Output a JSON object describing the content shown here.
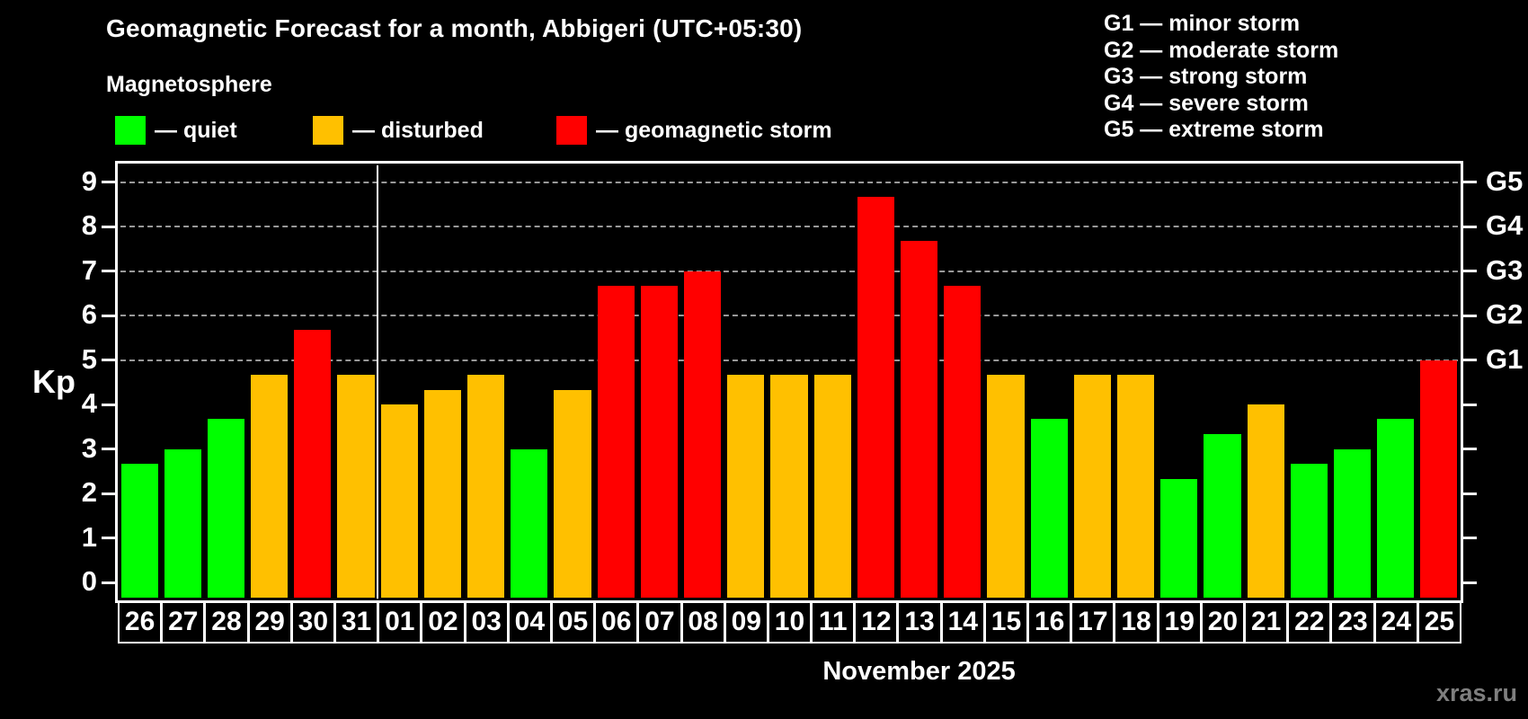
{
  "header": {
    "title": "Geomagnetic Forecast for a month, Abbigeri (UTC+05:30)",
    "subtitle": "Magnetosphere"
  },
  "legend": {
    "items": [
      {
        "id": "quiet",
        "label": "— quiet",
        "color": "#00ff00"
      },
      {
        "id": "disturbed",
        "label": "— disturbed",
        "color": "#ffc000"
      },
      {
        "id": "storm",
        "label": "— geomagnetic storm",
        "color": "#ff0000"
      }
    ]
  },
  "storm_scale": {
    "items": [
      "G1 — minor storm",
      "G2 — moderate storm",
      "G3 — strong storm",
      "G4 — severe storm",
      "G5 — extreme storm"
    ]
  },
  "chart_data": {
    "type": "bar",
    "title": "Geomagnetic Forecast for a month, Abbigeri (UTC+05:30)",
    "ylabel": "Kp",
    "xlabel": "November 2025",
    "ylim": [
      0,
      9
    ],
    "yticks": [
      0,
      1,
      2,
      3,
      4,
      5,
      6,
      7,
      8,
      9
    ],
    "gridlines_at": [
      5,
      6,
      7,
      8,
      9
    ],
    "grid": "dashed-horizontal",
    "legend_position": "top-left",
    "right_axis": {
      "labels": [
        {
          "kp": 5,
          "label": "G1"
        },
        {
          "kp": 6,
          "label": "G2"
        },
        {
          "kp": 7,
          "label": "G3"
        },
        {
          "kp": 8,
          "label": "G4"
        },
        {
          "kp": 9,
          "label": "G5"
        }
      ]
    },
    "separator_after_category_index": 5,
    "categories": [
      "26",
      "27",
      "28",
      "29",
      "30",
      "31",
      "01",
      "02",
      "03",
      "04",
      "05",
      "06",
      "07",
      "08",
      "09",
      "10",
      "11",
      "12",
      "13",
      "14",
      "15",
      "16",
      "17",
      "18",
      "19",
      "20",
      "21",
      "22",
      "23",
      "24",
      "25"
    ],
    "values": [
      2.67,
      3,
      3.67,
      4.67,
      5.67,
      4.67,
      4,
      4.33,
      4.67,
      3,
      4.33,
      6.67,
      6.67,
      7,
      4.67,
      4.67,
      4.67,
      8.67,
      7.67,
      6.67,
      4.67,
      3.67,
      4.67,
      4.67,
      2.33,
      3.33,
      4,
      2.67,
      3,
      3.67,
      5
    ],
    "statuses": [
      "quiet",
      "quiet",
      "quiet",
      "disturbed",
      "storm",
      "disturbed",
      "disturbed",
      "disturbed",
      "disturbed",
      "quiet",
      "disturbed",
      "storm",
      "storm",
      "storm",
      "disturbed",
      "disturbed",
      "disturbed",
      "storm",
      "storm",
      "storm",
      "disturbed",
      "quiet",
      "disturbed",
      "disturbed",
      "quiet",
      "quiet",
      "disturbed",
      "quiet",
      "quiet",
      "quiet",
      "storm"
    ]
  },
  "footer": {
    "watermark": "xras.ru"
  },
  "colors": {
    "quiet": "#00ff00",
    "disturbed": "#ffc000",
    "storm": "#ff0000",
    "grid": "#999999",
    "axis": "#ffffff",
    "text": "#ffffff",
    "watermark": "#7f7f7f",
    "background": "#000000"
  }
}
